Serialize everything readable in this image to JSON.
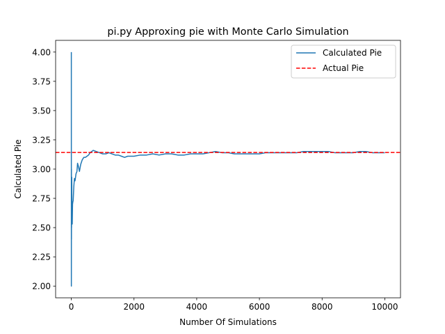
{
  "chart_data": {
    "type": "line",
    "title": "pi.py Approxing pie with Monte Carlo Simulation",
    "xlabel": "Number Of Simulations",
    "ylabel": "Calculated Pie",
    "xlim": [
      -500,
      10500
    ],
    "ylim": [
      1.9,
      4.1
    ],
    "xticks": [
      0,
      2000,
      4000,
      6000,
      8000,
      10000
    ],
    "xtick_labels": [
      "0",
      "2000",
      "4000",
      "6000",
      "8000",
      "10000"
    ],
    "yticks": [
      2.0,
      2.25,
      2.5,
      2.75,
      3.0,
      3.25,
      3.5,
      3.75,
      4.0
    ],
    "ytick_labels": [
      "2.00",
      "2.25",
      "2.50",
      "2.75",
      "3.00",
      "3.25",
      "3.50",
      "3.75",
      "4.00"
    ],
    "grid": false,
    "legend_position": "top-right",
    "series": [
      {
        "name": "Calculated Pie",
        "color": "#1f77b4",
        "style": "solid",
        "x": [
          1,
          2,
          3,
          4,
          5,
          6,
          8,
          10,
          12,
          15,
          20,
          25,
          30,
          40,
          50,
          60,
          80,
          100,
          120,
          150,
          180,
          200,
          230,
          260,
          300,
          350,
          400,
          450,
          500,
          550,
          600,
          650,
          700,
          800,
          900,
          1000,
          1100,
          1200,
          1300,
          1400,
          1500,
          1600,
          1700,
          1800,
          1900,
          2000,
          2200,
          2400,
          2600,
          2800,
          3000,
          3200,
          3400,
          3600,
          3800,
          4000,
          4200,
          4400,
          4600,
          4800,
          5000,
          5200,
          5400,
          5600,
          5800,
          6000,
          6200,
          6400,
          6600,
          6800,
          7000,
          7200,
          7400,
          7600,
          7800,
          8000,
          8200,
          8400,
          8600,
          8800,
          9000,
          9200,
          9400,
          9600,
          9800,
          10000
        ],
        "y": [
          4.0,
          2.0,
          2.67,
          3.0,
          2.4,
          2.67,
          2.5,
          2.8,
          2.67,
          2.93,
          2.6,
          2.72,
          2.53,
          2.7,
          2.72,
          2.73,
          2.85,
          2.92,
          2.9,
          2.96,
          2.98,
          3.05,
          3.02,
          2.98,
          3.04,
          3.08,
          3.1,
          3.1,
          3.11,
          3.12,
          3.14,
          3.15,
          3.16,
          3.15,
          3.14,
          3.13,
          3.13,
          3.14,
          3.13,
          3.12,
          3.12,
          3.11,
          3.1,
          3.11,
          3.11,
          3.11,
          3.12,
          3.12,
          3.13,
          3.12,
          3.13,
          3.13,
          3.12,
          3.12,
          3.13,
          3.13,
          3.13,
          3.14,
          3.15,
          3.14,
          3.14,
          3.13,
          3.13,
          3.13,
          3.13,
          3.13,
          3.14,
          3.14,
          3.14,
          3.14,
          3.14,
          3.14,
          3.15,
          3.15,
          3.15,
          3.15,
          3.15,
          3.14,
          3.14,
          3.14,
          3.14,
          3.15,
          3.15,
          3.14,
          3.14,
          3.14
        ]
      },
      {
        "name": "Actual Pie",
        "color": "#ff0000",
        "style": "dashed",
        "y_constant": 3.14159
      }
    ]
  }
}
